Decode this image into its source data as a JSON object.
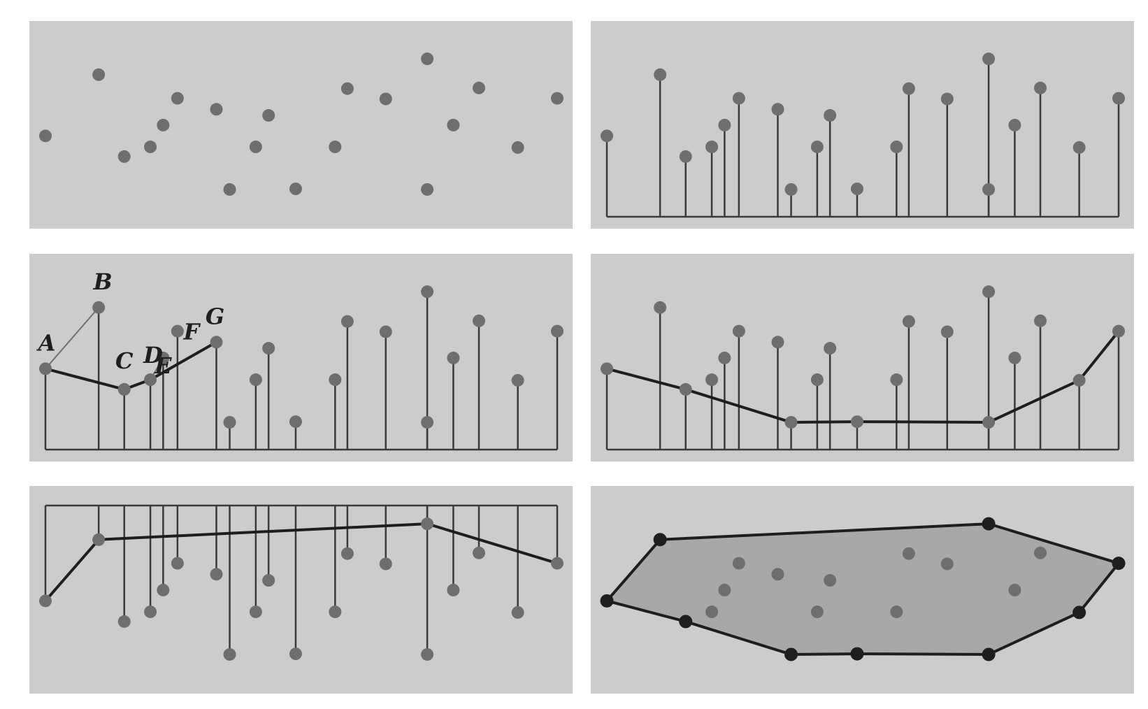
{
  "colors": {
    "page_background": "#ffffff",
    "panel_background": "#cbcccd",
    "point": "#6d6e70",
    "line": "#3a3a3c",
    "hull_edge": "#1e1e1f",
    "hull_vertex": "#1e1e1f",
    "hull_fill": "#a7a8aa",
    "construction_edge": "#6d6e70"
  },
  "points": [
    {
      "x": 0.0,
      "y": 0.573
    },
    {
      "x": 0.104,
      "y": 0.182
    },
    {
      "x": 0.154,
      "y": 0.705
    },
    {
      "x": 0.205,
      "y": 0.643
    },
    {
      "x": 0.23,
      "y": 0.504
    },
    {
      "x": 0.258,
      "y": 0.333
    },
    {
      "x": 0.334,
      "y": 0.403
    },
    {
      "x": 0.36,
      "y": 0.915
    },
    {
      "x": 0.411,
      "y": 0.643
    },
    {
      "x": 0.436,
      "y": 0.442
    },
    {
      "x": 0.489,
      "y": 0.911
    },
    {
      "x": 0.566,
      "y": 0.643
    },
    {
      "x": 0.59,
      "y": 0.271
    },
    {
      "x": 0.665,
      "y": 0.337
    },
    {
      "x": 0.746,
      "y": 0.915
    },
    {
      "x": 0.746,
      "y": 0.081
    },
    {
      "x": 0.797,
      "y": 0.504
    },
    {
      "x": 0.847,
      "y": 0.267
    },
    {
      "x": 0.923,
      "y": 0.647
    },
    {
      "x": 1.0,
      "y": 0.333
    }
  ],
  "upper_hull": [
    0,
    2,
    7,
    10,
    14,
    18,
    19
  ],
  "lower_hull": [
    0,
    1,
    15,
    19
  ],
  "construction": {
    "labels": [
      {
        "text": "A",
        "point": 0
      },
      {
        "text": "B",
        "point": 1
      },
      {
        "text": "C",
        "point": 2
      },
      {
        "text": "D",
        "point": 3
      },
      {
        "text": "E",
        "point": 4
      },
      {
        "text": "F",
        "point": 5
      },
      {
        "text": "G",
        "point": 6
      }
    ],
    "thick_path": [
      0,
      2,
      3,
      6
    ],
    "thin_edges": [
      [
        0,
        1
      ],
      [
        3,
        4
      ]
    ]
  },
  "panels": [
    {
      "name": "scattered-points",
      "mode": "points"
    },
    {
      "name": "points-sorted-by-x-from-baseline",
      "mode": "stems-up"
    },
    {
      "name": "upper-hull-construction",
      "mode": "construction"
    },
    {
      "name": "upper-hull-complete",
      "mode": "upper"
    },
    {
      "name": "lower-hull-from-top-line",
      "mode": "lower"
    },
    {
      "name": "convex-hull-result",
      "mode": "hull"
    }
  ]
}
